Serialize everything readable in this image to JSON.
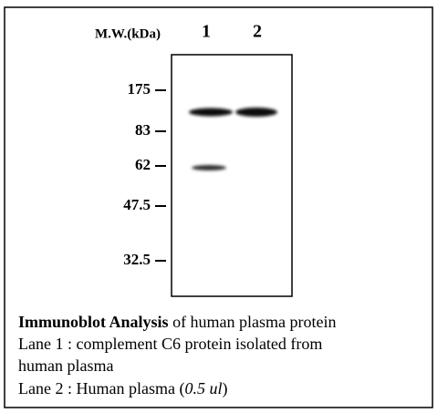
{
  "header": {
    "mw_label": "M.W.(kDa)",
    "lanes": [
      "1",
      "2"
    ]
  },
  "markers": [
    "175",
    "83",
    "62",
    "47.5",
    "32.5"
  ],
  "caption": {
    "title_bold": "Immunoblot Analysis",
    "title_rest": " of human plasma protein",
    "lane1_line1": "Lane 1 : complement C6 protein isolated from",
    "lane1_line2": "human plasma",
    "lane2_pre": "Lane 2 : Human plasma (",
    "lane2_italic": "0.5 ul",
    "lane2_post": ")"
  }
}
